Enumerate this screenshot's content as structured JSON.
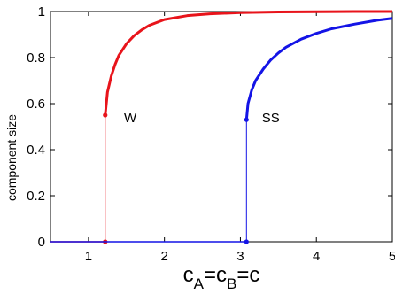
{
  "chart_data": {
    "type": "line",
    "title": "",
    "xlabel": {
      "parts": [
        {
          "text": "c",
          "sub": false
        },
        {
          "text": "A",
          "sub": true
        },
        {
          "text": "=c",
          "sub": false
        },
        {
          "text": "B",
          "sub": true
        },
        {
          "text": "=c",
          "sub": false
        }
      ]
    },
    "ylabel": "component size",
    "xlim": [
      0.5,
      5
    ],
    "ylim": [
      0,
      1
    ],
    "xticks": [
      1,
      2,
      3,
      4,
      5
    ],
    "yticks": [
      0,
      0.2,
      0.4,
      0.6,
      0.8,
      1
    ],
    "grid": false,
    "series": [
      {
        "color": "#e8141b",
        "transition_x": 1.22,
        "jump_y": 0.55,
        "x": [
          1.22,
          1.25,
          1.3,
          1.35,
          1.4,
          1.5,
          1.6,
          1.7,
          1.8,
          2.0,
          2.3,
          2.6,
          3.0,
          3.5,
          4.0,
          4.5,
          5.0
        ],
        "y": [
          0.55,
          0.65,
          0.72,
          0.77,
          0.81,
          0.86,
          0.895,
          0.92,
          0.94,
          0.965,
          0.982,
          0.99,
          0.995,
          0.998,
          0.999,
          1.0,
          1.0
        ]
      },
      {
        "color": "#1414e6",
        "transition_x": 3.08,
        "jump_y": 0.53,
        "x": [
          3.08,
          3.1,
          3.15,
          3.2,
          3.3,
          3.4,
          3.5,
          3.6,
          3.8,
          4.0,
          4.2,
          4.5,
          4.8,
          5.0
        ],
        "y": [
          0.53,
          0.6,
          0.66,
          0.7,
          0.75,
          0.79,
          0.82,
          0.845,
          0.88,
          0.905,
          0.925,
          0.945,
          0.962,
          0.97
        ]
      }
    ],
    "annotations": [
      {
        "text": "W",
        "x": 1.55,
        "y": 0.52
      },
      {
        "text": "SS",
        "x": 3.4,
        "y": 0.52
      }
    ]
  }
}
